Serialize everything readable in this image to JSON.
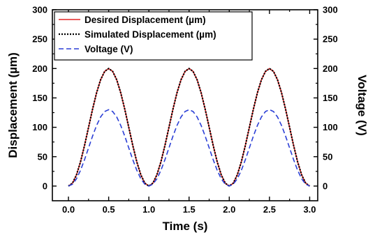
{
  "chart_data": {
    "type": "line",
    "xlabel": "Time (s)",
    "ylabel": "Displacement (µm)",
    "ylabel_right": "Voltage (V)",
    "xlim": [
      -0.2,
      3.1
    ],
    "ylim": [
      -25,
      300
    ],
    "ylim_right": [
      -25,
      300
    ],
    "x_ticks": [
      "0.0",
      "0.5",
      "1.0",
      "1.5",
      "2.0",
      "2.5",
      "3.0"
    ],
    "y_ticks": [
      "0",
      "50",
      "100",
      "150",
      "200",
      "250",
      "300"
    ],
    "y_ticks_right": [
      "0",
      "50",
      "100",
      "150",
      "200",
      "250",
      "300"
    ],
    "grid": false,
    "legend_position": "top-left",
    "series": [
      {
        "name": "Desired Displacement (µm)",
        "color": "#e32626",
        "style": "solid",
        "x": [
          0.0,
          0.05,
          0.1,
          0.15,
          0.2,
          0.25,
          0.3,
          0.35,
          0.4,
          0.45,
          0.5,
          0.55,
          0.6,
          0.65,
          0.7,
          0.75,
          0.8,
          0.85,
          0.9,
          0.95,
          1.0,
          1.05,
          1.1,
          1.15,
          1.2,
          1.25,
          1.3,
          1.35,
          1.4,
          1.45,
          1.5,
          1.55,
          1.6,
          1.65,
          1.7,
          1.75,
          1.8,
          1.85,
          1.9,
          1.95,
          2.0,
          2.05,
          2.1,
          2.15,
          2.2,
          2.25,
          2.3,
          2.35,
          2.4,
          2.45,
          2.5,
          2.55,
          2.6,
          2.65,
          2.7,
          2.75,
          2.8,
          2.85,
          2.9,
          2.95,
          3.0
        ],
        "values": [
          0,
          4.9,
          19.1,
          41.2,
          69.1,
          100,
          130.9,
          158.8,
          180.9,
          195.1,
          200,
          195.1,
          180.9,
          158.8,
          130.9,
          100,
          69.1,
          41.2,
          19.1,
          4.9,
          0,
          4.9,
          19.1,
          41.2,
          69.1,
          100,
          130.9,
          158.8,
          180.9,
          195.1,
          200,
          195.1,
          180.9,
          158.8,
          130.9,
          100,
          69.1,
          41.2,
          19.1,
          4.9,
          0,
          4.9,
          19.1,
          41.2,
          69.1,
          100,
          130.9,
          158.8,
          180.9,
          195.1,
          200,
          195.1,
          180.9,
          158.8,
          130.9,
          100,
          69.1,
          41.2,
          19.1,
          4.9,
          0
        ]
      },
      {
        "name": "Simulated Displacement (µm)",
        "color": "#000000",
        "style": "dotted",
        "x": [
          0.0,
          0.05,
          0.1,
          0.15,
          0.2,
          0.25,
          0.3,
          0.35,
          0.4,
          0.45,
          0.5,
          0.55,
          0.6,
          0.65,
          0.7,
          0.75,
          0.8,
          0.85,
          0.9,
          0.95,
          1.0,
          1.05,
          1.1,
          1.15,
          1.2,
          1.25,
          1.3,
          1.35,
          1.4,
          1.45,
          1.5,
          1.55,
          1.6,
          1.65,
          1.7,
          1.75,
          1.8,
          1.85,
          1.9,
          1.95,
          2.0,
          2.05,
          2.1,
          2.15,
          2.2,
          2.25,
          2.3,
          2.35,
          2.4,
          2.45,
          2.5,
          2.55,
          2.6,
          2.65,
          2.7,
          2.75,
          2.8,
          2.85,
          2.9,
          2.95,
          3.0
        ],
        "values": [
          0,
          4.9,
          19.1,
          41.2,
          69.1,
          100,
          130.9,
          158.8,
          180.9,
          195.1,
          200,
          195.1,
          180.9,
          158.8,
          130.9,
          100,
          69.1,
          41.2,
          19.1,
          4.9,
          0,
          4.9,
          19.1,
          41.2,
          69.1,
          100,
          130.9,
          158.8,
          180.9,
          195.1,
          200,
          195.1,
          180.9,
          158.8,
          130.9,
          100,
          69.1,
          41.2,
          19.1,
          4.9,
          0,
          4.9,
          19.1,
          41.2,
          69.1,
          100,
          130.9,
          158.8,
          180.9,
          195.1,
          200,
          195.1,
          180.9,
          158.8,
          130.9,
          100,
          69.1,
          41.2,
          19.1,
          4.9,
          0
        ]
      },
      {
        "name": "Voltage (V)",
        "color": "#2b3fd6",
        "style": "dashed",
        "axis": "right",
        "x": [
          0.0,
          0.05,
          0.1,
          0.15,
          0.2,
          0.25,
          0.3,
          0.35,
          0.4,
          0.45,
          0.5,
          0.55,
          0.6,
          0.65,
          0.7,
          0.75,
          0.8,
          0.85,
          0.9,
          0.95,
          1.0,
          1.05,
          1.1,
          1.15,
          1.2,
          1.25,
          1.3,
          1.35,
          1.4,
          1.45,
          1.5,
          1.55,
          1.6,
          1.65,
          1.7,
          1.75,
          1.8,
          1.85,
          1.9,
          1.95,
          2.0,
          2.05,
          2.1,
          2.15,
          2.2,
          2.25,
          2.3,
          2.35,
          2.4,
          2.45,
          2.5,
          2.55,
          2.6,
          2.65,
          2.7,
          2.75,
          2.8,
          2.85,
          2.9,
          2.95,
          3.0
        ],
        "values": [
          0,
          3.2,
          12.4,
          26.8,
          44.9,
          65,
          85.1,
          103.2,
          117.6,
          126.8,
          130,
          126.8,
          117.6,
          103.2,
          85.1,
          65,
          44.9,
          26.8,
          12.4,
          3.2,
          0,
          3.2,
          12.4,
          26.8,
          44.9,
          65,
          85.1,
          103.2,
          117.6,
          126.8,
          130,
          126.8,
          117.6,
          103.2,
          85.1,
          65,
          44.9,
          26.8,
          12.4,
          3.2,
          0,
          3.2,
          12.4,
          26.8,
          44.9,
          65,
          85.1,
          103.2,
          117.6,
          126.8,
          130,
          126.8,
          117.6,
          103.2,
          85.1,
          65,
          44.9,
          26.8,
          12.4,
          3.2,
          0
        ]
      }
    ]
  }
}
